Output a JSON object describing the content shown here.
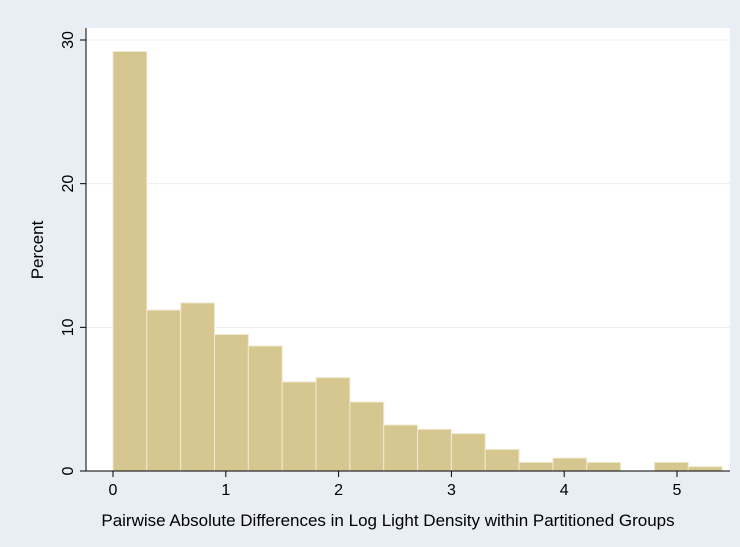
{
  "chart_data": {
    "type": "bar",
    "histogram": true,
    "bin_width": 0.3,
    "bins": [
      {
        "x0": 0.0,
        "x1": 0.3,
        "value": 29.2
      },
      {
        "x0": 0.3,
        "x1": 0.6,
        "value": 11.2
      },
      {
        "x0": 0.6,
        "x1": 0.9,
        "value": 11.7
      },
      {
        "x0": 0.9,
        "x1": 1.2,
        "value": 9.5
      },
      {
        "x0": 1.2,
        "x1": 1.5,
        "value": 8.7
      },
      {
        "x0": 1.5,
        "x1": 1.8,
        "value": 6.2
      },
      {
        "x0": 1.8,
        "x1": 2.1,
        "value": 6.5
      },
      {
        "x0": 2.1,
        "x1": 2.4,
        "value": 4.8
      },
      {
        "x0": 2.4,
        "x1": 2.7,
        "value": 3.2
      },
      {
        "x0": 2.7,
        "x1": 3.0,
        "value": 2.9
      },
      {
        "x0": 3.0,
        "x1": 3.3,
        "value": 2.6
      },
      {
        "x0": 3.3,
        "x1": 3.6,
        "value": 1.5
      },
      {
        "x0": 3.6,
        "x1": 3.9,
        "value": 0.6
      },
      {
        "x0": 3.9,
        "x1": 4.2,
        "value": 0.9
      },
      {
        "x0": 4.2,
        "x1": 4.5,
        "value": 0.6
      },
      {
        "x0": 4.8,
        "x1": 5.1,
        "value": 0.6
      },
      {
        "x0": 5.1,
        "x1": 5.4,
        "value": 0.3
      }
    ],
    "xlabel": "Pairwise Absolute Differences in Log Light Density within Partitioned Groups",
    "ylabel": "Percent",
    "xlim": [
      -0.1,
      5.5
    ],
    "ylim": [
      0,
      30.5
    ],
    "x_ticks": [
      "0",
      "1",
      "2",
      "3",
      "4",
      "5"
    ],
    "y_ticks": [
      "0",
      "10",
      "20",
      "30"
    ],
    "grid": "horizontal",
    "colors": {
      "bar_fill": "#d5c78f",
      "bar_stroke": "#f0ead0",
      "plot_bg": "#ffffff",
      "outer_bg": "#e8eef3",
      "grid": "#e8eef3"
    }
  }
}
